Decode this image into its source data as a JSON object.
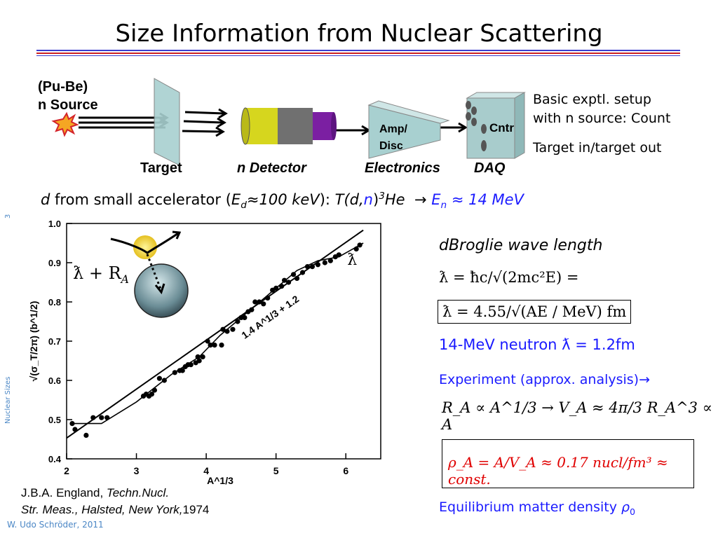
{
  "slide": {
    "title": "Size Information from Nuclear Scattering",
    "page_number": "3",
    "side_label": "Nuclear Sizes",
    "author": "W. Udo Schröder, 2011"
  },
  "setup": {
    "source_line1": "(Pu-Be)",
    "source_line2": "n Source",
    "label_target": "Target",
    "label_detector": "n Detector",
    "label_electronics": "Electronics",
    "label_daq": "DAQ",
    "amp_line1": "Amp/",
    "amp_line2": "Disc",
    "cntr": "Cntr",
    "desc_line1": "Basic exptl. setup",
    "desc_line2": "with n source: Count",
    "desc_line3": "Target in/target out"
  },
  "reaction": {
    "d": "d",
    "from": "from small accelerator (",
    "E": "E",
    "d_sub": "d",
    "approx100": "≈100 keV",
    "close": "): ",
    "T": "T",
    "paren": "(d,",
    "n": "n",
    "paren2": ")",
    "mass": "3",
    "He": "He",
    "arrow": "→",
    "En": "E",
    "n_sub": "n",
    "energy": "≈ 14 MeV"
  },
  "physics": {
    "dbroglie_title": "dBroglie wave length",
    "lambda_def": "ƛ = ħc/√(2mc²E) =",
    "lambda_formula": "ƛ = 4.55/√(AE / MeV) fm",
    "neutron_result": "14-MeV neutron  ƛ = 1.2fm",
    "experiment_label": "Experiment (approx. analysis)→",
    "scaling": "R_A ∝ A^1/3  → V_A ≈ 4π/3 R_A^3 ∝ A",
    "density_formula": "ρ_A = A/V_A ≈ 0.17 nucl/fm³ ≈ const.",
    "equilibrium": "Equilibrium matter density",
    "rho0": "ρ",
    "rho0_sub": "0",
    "lambda_plus_R": "ƛ + R",
    "R_sub": "A",
    "lambda_symbol": "ƛ"
  },
  "reference": {
    "line1_a": "J.B.A. England, ",
    "line1_b": "Techn.Nucl.",
    "line2_a": "Str. Meas., Halsted, New York,",
    "line2_b": "1974"
  },
  "chart_data": {
    "type": "scatter",
    "title": "",
    "xlabel": "A^1/3",
    "ylabel": "√(σ_T/2π) (b^1/2)",
    "xlim": [
      2,
      6.5
    ],
    "ylim": [
      0.4,
      1.0
    ],
    "x_ticks": [
      "2",
      "3",
      "4",
      "5",
      "6"
    ],
    "y_ticks": [
      "0.4",
      "0.5",
      "0.6",
      "0.7",
      "0.8",
      "0.9",
      "1.0"
    ],
    "fit_label": "1.4 A^1/3 + 1.2",
    "series": [
      {
        "kind": "points",
        "x": [
          2.08,
          2.12,
          2.28,
          2.38,
          2.5,
          2.58,
          3.1,
          3.14,
          3.18,
          3.22,
          3.26,
          3.33,
          3.4,
          3.55,
          3.62,
          3.66,
          3.7,
          3.74,
          3.78,
          3.85,
          3.88,
          3.9,
          3.95,
          4.02,
          4.06,
          4.12,
          4.22,
          4.24,
          4.3,
          4.38,
          4.45,
          4.5,
          4.55,
          4.6,
          4.65,
          4.7,
          4.76,
          4.82,
          4.88,
          4.95,
          5.0,
          5.08,
          5.12,
          5.18,
          5.25,
          5.3,
          5.38,
          5.45,
          5.52,
          5.6,
          5.7,
          5.78,
          5.85,
          5.9,
          6.15,
          6.2
        ],
        "y": [
          0.49,
          0.475,
          0.46,
          0.505,
          0.505,
          0.505,
          0.56,
          0.565,
          0.56,
          0.565,
          0.575,
          0.605,
          0.6,
          0.62,
          0.625,
          0.625,
          0.635,
          0.64,
          0.64,
          0.645,
          0.66,
          0.65,
          0.66,
          0.7,
          0.69,
          0.69,
          0.69,
          0.73,
          0.725,
          0.73,
          0.75,
          0.76,
          0.76,
          0.775,
          0.78,
          0.8,
          0.8,
          0.795,
          0.81,
          0.83,
          0.835,
          0.84,
          0.855,
          0.85,
          0.87,
          0.86,
          0.875,
          0.89,
          0.89,
          0.895,
          0.9,
          0.905,
          0.915,
          0.92,
          0.935,
          0.945
        ]
      },
      {
        "kind": "line",
        "name": "1.4 A^1/3 + 1.2",
        "x": [
          2.0,
          6.25
        ],
        "y": [
          0.453,
          0.983
        ]
      },
      {
        "kind": "curve",
        "x": [
          2.05,
          2.5,
          3.0,
          3.5,
          3.9,
          4.2,
          4.6,
          5.0,
          5.3,
          5.6,
          5.9,
          6.1,
          6.25
        ],
        "y": [
          0.49,
          0.49,
          0.545,
          0.615,
          0.66,
          0.715,
          0.775,
          0.835,
          0.88,
          0.905,
          0.915,
          0.935,
          0.95
        ]
      }
    ]
  }
}
